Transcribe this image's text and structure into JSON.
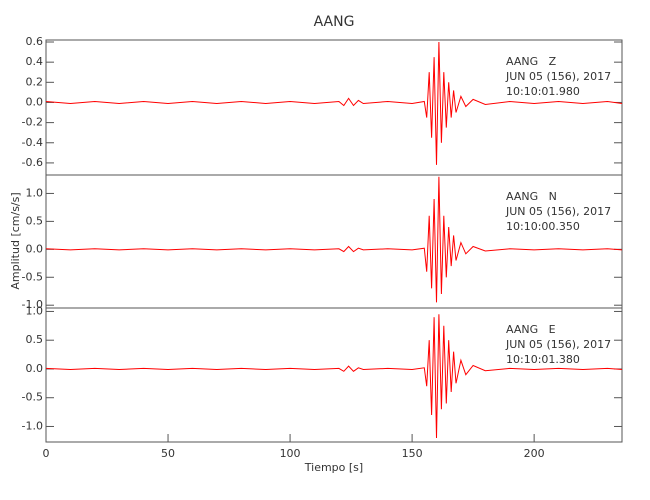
{
  "title": "AANG",
  "y_label": "Amplitud [cm/s/s]",
  "x_label": "Tiempo [s]",
  "chart_data": [
    {
      "type": "line",
      "annotations": [
        "AANG   Z",
        "JUN 05 (156), 2017",
        "10:10:01.980"
      ],
      "x": [
        0,
        10,
        20,
        30,
        40,
        50,
        60,
        70,
        80,
        90,
        100,
        110,
        120,
        122,
        124,
        126,
        128,
        130,
        140,
        150,
        155,
        156,
        157,
        158,
        159,
        160,
        161,
        162,
        163,
        164,
        165,
        166,
        167,
        168,
        170,
        172,
        175,
        180,
        190,
        200,
        210,
        220,
        230,
        236
      ],
      "series": [
        {
          "name": "Z",
          "color": "#ff0000",
          "values": [
            0.01,
            -0.01,
            0.01,
            -0.01,
            0.01,
            -0.01,
            0.01,
            -0.01,
            0.01,
            -0.01,
            0.01,
            -0.01,
            0.01,
            -0.03,
            0.04,
            -0.03,
            0.02,
            -0.01,
            0.01,
            -0.01,
            0.01,
            -0.15,
            0.3,
            -0.35,
            0.45,
            -0.62,
            0.6,
            -0.4,
            0.3,
            -0.25,
            0.2,
            -0.15,
            0.12,
            -0.1,
            0.06,
            -0.04,
            0.03,
            -0.02,
            0.01,
            -0.01,
            0.01,
            -0.01,
            0.01,
            -0.01
          ]
        }
      ],
      "xlim": [
        0,
        236
      ],
      "ylim": [
        -0.72,
        0.62
      ],
      "yticks": [
        -0.6,
        -0.4,
        -0.2,
        {
          "value": 0,
          "label": "0.0"
        },
        0.2,
        0.4,
        0.6
      ]
    },
    {
      "type": "line",
      "annotations": [
        "AANG   N",
        "JUN 05 (156), 2017",
        "10:10:00.350"
      ],
      "x": [
        0,
        10,
        20,
        30,
        40,
        50,
        60,
        70,
        80,
        90,
        100,
        110,
        120,
        122,
        124,
        126,
        128,
        130,
        140,
        150,
        155,
        156,
        157,
        158,
        159,
        160,
        161,
        162,
        163,
        164,
        165,
        166,
        167,
        168,
        170,
        172,
        175,
        180,
        190,
        200,
        210,
        220,
        230,
        236
      ],
      "series": [
        {
          "name": "N",
          "color": "#ff0000",
          "values": [
            0.01,
            -0.01,
            0.01,
            -0.01,
            0.01,
            -0.01,
            0.01,
            -0.01,
            0.01,
            -0.01,
            0.01,
            -0.01,
            0.01,
            -0.04,
            0.05,
            -0.04,
            0.02,
            -0.01,
            0.01,
            -0.01,
            0.02,
            -0.4,
            0.6,
            -0.7,
            0.9,
            -0.95,
            1.3,
            -0.8,
            0.6,
            -0.5,
            0.4,
            -0.3,
            0.25,
            -0.2,
            0.12,
            -0.08,
            0.05,
            -0.03,
            0.01,
            -0.01,
            0.01,
            -0.01,
            0.01,
            -0.01
          ]
        }
      ],
      "xlim": [
        0,
        236
      ],
      "ylim": [
        -1.05,
        1.33
      ],
      "yticks": [
        {
          "value": -1,
          "label": "-1.0"
        },
        -0.5,
        {
          "value": 0,
          "label": "0.0"
        },
        0.5,
        {
          "value": 1,
          "label": "1.0"
        }
      ]
    },
    {
      "type": "line",
      "annotations": [
        "AANG   E",
        "JUN 05 (156), 2017",
        "10:10:01.380"
      ],
      "x": [
        0,
        10,
        20,
        30,
        40,
        50,
        60,
        70,
        80,
        90,
        100,
        110,
        120,
        122,
        124,
        126,
        128,
        130,
        140,
        150,
        155,
        156,
        157,
        158,
        159,
        160,
        161,
        162,
        163,
        164,
        165,
        166,
        167,
        168,
        170,
        172,
        175,
        180,
        190,
        200,
        210,
        220,
        230,
        236
      ],
      "series": [
        {
          "name": "E",
          "color": "#ff0000",
          "values": [
            0.01,
            -0.01,
            0.01,
            -0.01,
            0.01,
            -0.01,
            0.01,
            -0.01,
            0.01,
            -0.01,
            0.01,
            -0.01,
            0.01,
            -0.04,
            0.05,
            -0.04,
            0.02,
            -0.01,
            0.01,
            -0.01,
            0.02,
            -0.3,
            0.5,
            -0.8,
            0.9,
            -1.2,
            0.95,
            -0.7,
            0.75,
            -0.6,
            0.5,
            -0.4,
            0.3,
            -0.25,
            0.15,
            -0.1,
            0.06,
            -0.03,
            0.01,
            -0.01,
            0.01,
            -0.01,
            0.01,
            -0.01
          ]
        }
      ],
      "xlim": [
        0,
        236
      ],
      "ylim": [
        -1.27,
        1.06
      ],
      "yticks": [
        {
          "value": -1,
          "label": "-1.0"
        },
        -0.5,
        {
          "value": 0,
          "label": "0.0"
        },
        0.5,
        {
          "value": 1,
          "label": "1.0"
        }
      ],
      "xticks": [
        0,
        50,
        100,
        150,
        200
      ]
    }
  ]
}
